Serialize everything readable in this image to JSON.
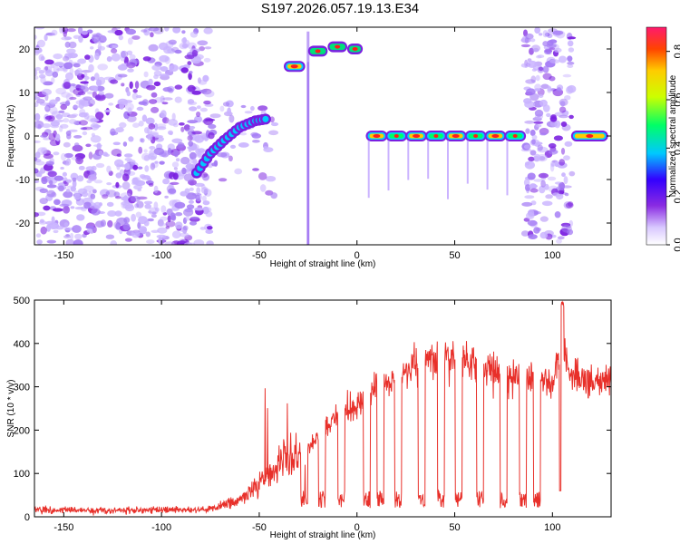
{
  "title": "S197.2026.057.19.13.E34",
  "colors": {
    "snr_line": "#e8302a",
    "spectro_low": "#c9b3ff",
    "spectro_mid": "#7a1fe0",
    "spectro_high": "#ff1a1a"
  },
  "chart_data": [
    {
      "type": "heatmap",
      "name": "spectrogram",
      "xlabel": "Height of straight line (km)",
      "ylabel": "Frequency (Hz)",
      "xlim": [
        -165,
        130
      ],
      "ylim": [
        -25,
        25
      ],
      "xticks": [
        -150,
        -100,
        -50,
        0,
        50,
        100
      ],
      "yticks": [
        -20,
        -10,
        0,
        10,
        20
      ],
      "xtick_labels": [
        "-150",
        "-100",
        "-50",
        "0",
        "50",
        "100"
      ],
      "ytick_labels": [
        "-20",
        "-10",
        "0",
        "10",
        "20"
      ],
      "colorbar": {
        "label": "Normalized spectral amplitude",
        "range": [
          0,
          0.9
        ],
        "ticks": [
          0.0,
          0.2,
          0.4,
          0.6,
          0.8
        ],
        "tick_labels": [
          "0.0",
          "0.2",
          "0.4",
          "0.6",
          "0.8"
        ]
      },
      "features": [
        {
          "kind": "noise",
          "x_range": [
            -165,
            -75
          ],
          "freq_range": [
            -25,
            25
          ]
        },
        {
          "kind": "rising_streak",
          "points": [
            [
              -82,
              -8.5
            ],
            [
              -75,
              -4
            ],
            [
              -68,
              -1
            ],
            [
              -60,
              2
            ],
            [
              -52,
              3.5
            ],
            [
              -45,
              4
            ]
          ]
        },
        {
          "kind": "tone",
          "x_range": [
            -37,
            -27
          ],
          "freq": 16
        },
        {
          "kind": "arc",
          "points": [
            [
              -25,
              19
            ],
            [
              -15,
              20
            ],
            [
              -5,
              21
            ],
            [
              3,
              19
            ]
          ]
        },
        {
          "kind": "tone",
          "x_range": [
            5,
            86
          ],
          "freq": 0,
          "segments": 8
        },
        {
          "kind": "noise",
          "x_range": [
            86,
            110
          ],
          "freq_range": [
            -25,
            25
          ]
        },
        {
          "kind": "tone",
          "x_range": [
            110,
            128
          ],
          "freq": 0
        }
      ]
    },
    {
      "type": "line",
      "name": "snr",
      "xlabel": "Height of straight line (km)",
      "ylabel": "SNR (10 * v/v)",
      "xlim": [
        -165,
        130
      ],
      "ylim": [
        0,
        500
      ],
      "xticks": [
        -150,
        -100,
        -50,
        0,
        50,
        100
      ],
      "yticks": [
        0,
        100,
        200,
        300,
        400,
        500
      ],
      "xtick_labels": [
        "-150",
        "-100",
        "-50",
        "0",
        "50",
        "100"
      ],
      "ytick_labels": [
        "0",
        "100",
        "200",
        "300",
        "400",
        "500"
      ],
      "envelope": {
        "x": [
          -165,
          -80,
          -70,
          -60,
          -50,
          -40,
          -30,
          -20,
          -10,
          0,
          10,
          20,
          30,
          40,
          50,
          60,
          70,
          80,
          90,
          100,
          105,
          110,
          120,
          130
        ],
        "y": [
          15,
          15,
          25,
          40,
          70,
          120,
          150,
          180,
          230,
          260,
          300,
          320,
          350,
          360,
          370,
          350,
          330,
          320,
          320,
          310,
          400,
          320,
          310,
          310
        ]
      },
      "dips_x": [
        -27,
        -18,
        -8,
        5,
        12,
        21,
        33,
        43,
        52,
        63,
        75,
        85,
        92
      ]
    }
  ]
}
